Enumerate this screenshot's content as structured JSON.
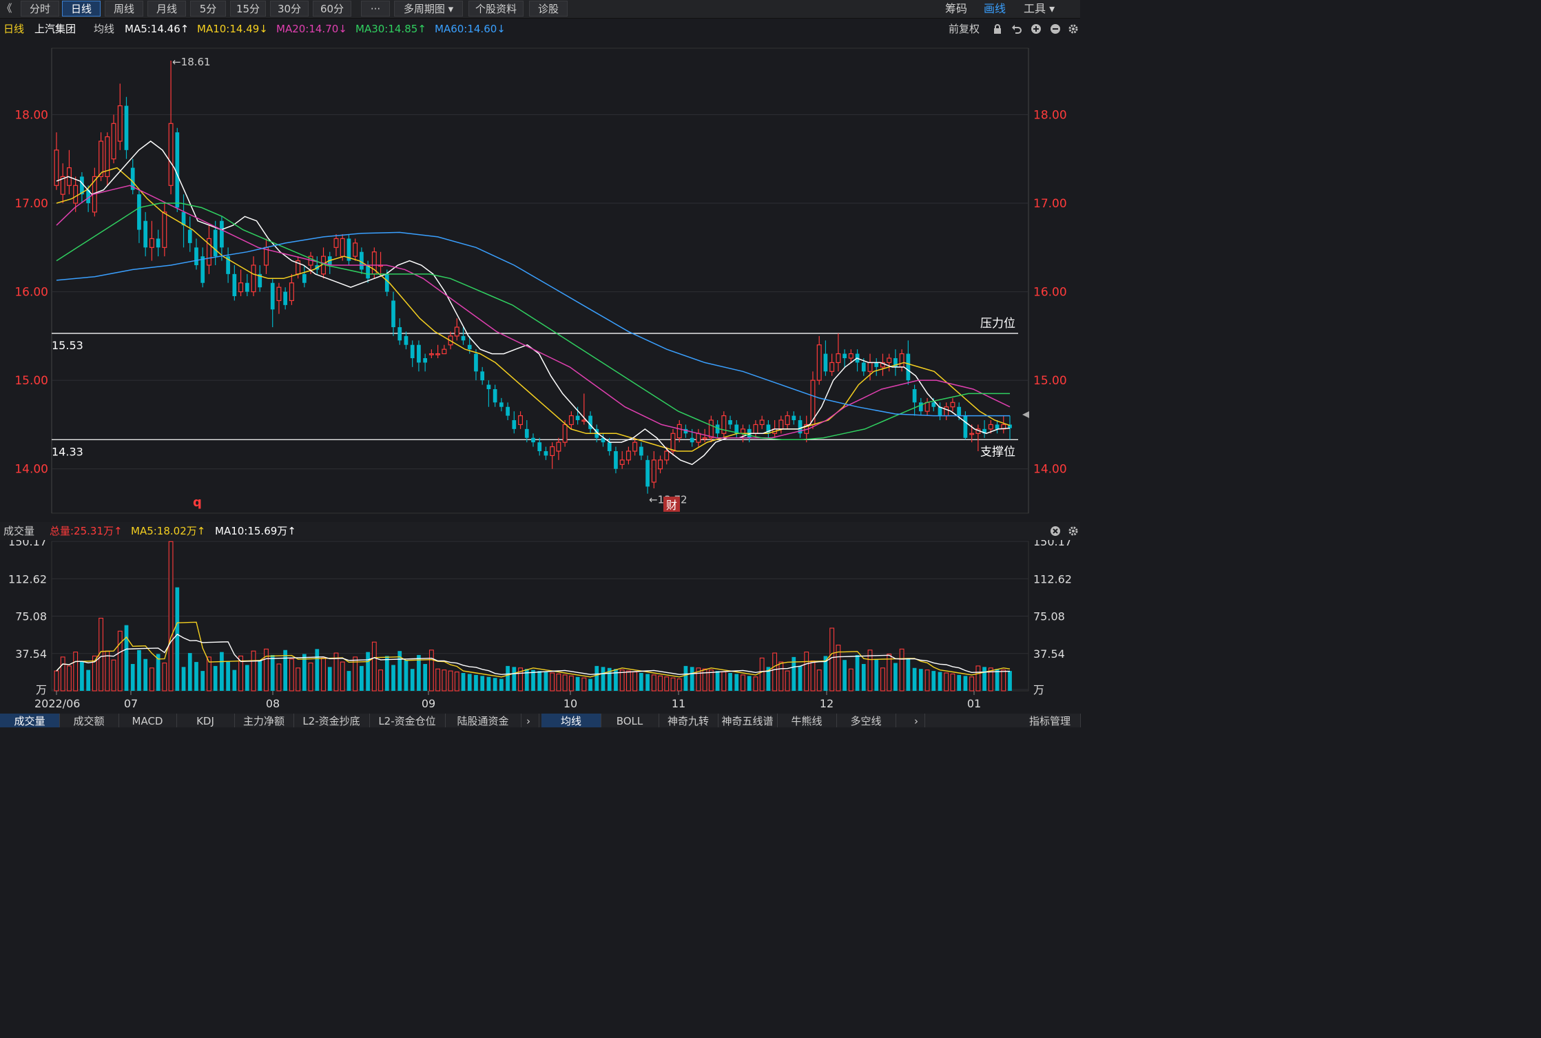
{
  "toolbar": {
    "back_glyph": "《",
    "period_tabs": [
      "分时",
      "日线",
      "周线",
      "月线",
      "5分",
      "15分",
      "30分",
      "60分",
      "···",
      "多周期图 ▾",
      "个股资料",
      "诊股"
    ],
    "active_tab": "日线",
    "right_items": [
      "筹码",
      "画线",
      "工具 ▾"
    ]
  },
  "info": {
    "period": "日线",
    "stock_name": "上汽集团",
    "indicator_name": "均线",
    "ma5": "MA5:14.46↑",
    "ma10": "MA10:14.49↓",
    "ma20": "MA20:14.70↓",
    "ma30": "MA30:14.85↑",
    "ma60": "MA60:14.60↓",
    "adjust": "前复权"
  },
  "colors": {
    "up": "#ff3b3b",
    "down": "#00b5c8",
    "ma5": "#ffffff",
    "ma10": "#f5d020",
    "ma20": "#e040b0",
    "ma30": "#30d060",
    "ma60": "#3aa0ff",
    "axis_label": "#ff3b3b"
  },
  "price_axis": {
    "ticks": [
      "18.00",
      "17.00",
      "16.00",
      "15.00",
      "14.00"
    ]
  },
  "annotations": {
    "high_label": "←18.61",
    "low_label": "←13.72",
    "resistance_value": "15.53",
    "support_value": "14.33",
    "resistance_label": "压力位",
    "support_label": "支撑位",
    "q_marker": "q",
    "cai_marker": "财"
  },
  "volume": {
    "title": "成交量",
    "total": "总量:25.31万↑",
    "ma5": "MA5:18.02万↑",
    "ma10": "MA10:15.69万↑",
    "ticks": [
      "150.17",
      "112.62",
      "75.08",
      "37.54",
      "万"
    ]
  },
  "dates": [
    "2022/06",
    "07",
    "08",
    "09",
    "10",
    "11",
    "12",
    "01"
  ],
  "bottom_tabs_left": [
    "成交量",
    "成交额",
    "MACD",
    "KDJ",
    "主力净额",
    "L2-资金抄底",
    "L2-资金仓位",
    "陆股通资金"
  ],
  "bottom_tabs_right": [
    "均线",
    "BOLL",
    "神奇九转",
    "神奇五线谱",
    "牛熊线",
    "多空线"
  ],
  "bottom_right_label": "指标管理",
  "chart_data": {
    "type": "candlestick",
    "ylim": [
      13.5,
      18.75
    ],
    "resistance": 15.53,
    "support": 14.33,
    "candles": [
      [
        17.2,
        17.6,
        17.8,
        17.15
      ],
      [
        17.1,
        17.3,
        17.45,
        17.0
      ],
      [
        17.2,
        17.4,
        17.6,
        17.1
      ],
      [
        17.0,
        17.2,
        17.3,
        16.9
      ],
      [
        17.3,
        17.1,
        17.35,
        17.0
      ],
      [
        17.15,
        17.0,
        17.2,
        16.9
      ],
      [
        16.9,
        17.3,
        17.4,
        16.85
      ],
      [
        17.3,
        17.7,
        17.8,
        17.25
      ],
      [
        17.3,
        17.75,
        17.8,
        17.2
      ],
      [
        17.5,
        17.9,
        18.0,
        17.45
      ],
      [
        17.7,
        18.1,
        18.35,
        17.6
      ],
      [
        18.1,
        17.6,
        18.2,
        17.5
      ],
      [
        17.4,
        17.15,
        17.5,
        17.1
      ],
      [
        17.1,
        16.7,
        17.15,
        16.55
      ],
      [
        16.8,
        16.5,
        16.9,
        16.4
      ],
      [
        16.5,
        16.6,
        16.8,
        16.35
      ],
      [
        16.6,
        16.5,
        16.7,
        16.4
      ],
      [
        16.5,
        16.9,
        17.0,
        16.4
      ],
      [
        17.2,
        17.9,
        18.61,
        17.1
      ],
      [
        17.8,
        16.95,
        17.85,
        16.9
      ],
      [
        16.9,
        16.75,
        17.1,
        16.5
      ],
      [
        16.7,
        16.55,
        16.85,
        16.45
      ],
      [
        16.5,
        16.3,
        16.6,
        16.25
      ],
      [
        16.4,
        16.1,
        16.5,
        16.05
      ],
      [
        16.3,
        16.6,
        16.75,
        16.2
      ],
      [
        16.7,
        16.4,
        16.8,
        16.3
      ],
      [
        16.8,
        16.5,
        16.85,
        16.35
      ],
      [
        16.4,
        16.2,
        16.5,
        16.1
      ],
      [
        16.2,
        15.95,
        16.3,
        15.9
      ],
      [
        16.0,
        16.1,
        16.25,
        15.95
      ],
      [
        16.1,
        16.0,
        16.2,
        15.95
      ],
      [
        16.0,
        16.3,
        16.4,
        15.95
      ],
      [
        16.2,
        16.05,
        16.3,
        16.0
      ],
      [
        16.3,
        16.5,
        16.6,
        16.2
      ],
      [
        16.1,
        15.8,
        16.15,
        15.6
      ],
      [
        15.9,
        16.05,
        16.1,
        15.75
      ],
      [
        16.0,
        15.85,
        16.05,
        15.8
      ],
      [
        15.9,
        16.1,
        16.2,
        15.85
      ],
      [
        16.2,
        16.35,
        16.4,
        16.15
      ],
      [
        16.2,
        16.1,
        16.3,
        16.05
      ],
      [
        16.3,
        16.4,
        16.45,
        16.2
      ],
      [
        16.3,
        16.25,
        16.4,
        16.2
      ],
      [
        16.2,
        16.4,
        16.5,
        16.15
      ],
      [
        16.4,
        16.3,
        16.45,
        16.2
      ],
      [
        16.5,
        16.6,
        16.65,
        16.4
      ],
      [
        16.4,
        16.6,
        16.65,
        16.35
      ],
      [
        16.6,
        16.35,
        16.65,
        16.3
      ],
      [
        16.4,
        16.55,
        16.6,
        16.35
      ],
      [
        16.45,
        16.25,
        16.5,
        16.2
      ],
      [
        16.3,
        16.15,
        16.35,
        16.1
      ],
      [
        16.2,
        16.45,
        16.5,
        16.15
      ],
      [
        16.3,
        16.3,
        16.45,
        16.2
      ],
      [
        16.2,
        16.0,
        16.25,
        15.95
      ],
      [
        15.9,
        15.6,
        16.0,
        15.5
      ],
      [
        15.6,
        15.45,
        15.7,
        15.4
      ],
      [
        15.5,
        15.4,
        15.55,
        15.35
      ],
      [
        15.4,
        15.25,
        15.45,
        15.15
      ],
      [
        15.4,
        15.2,
        15.45,
        15.1
      ],
      [
        15.25,
        15.2,
        15.3,
        15.1
      ],
      [
        15.3,
        15.3,
        15.35,
        15.25
      ],
      [
        15.3,
        15.3,
        15.4,
        15.25
      ],
      [
        15.3,
        15.35,
        15.4,
        15.3
      ],
      [
        15.4,
        15.5,
        15.55,
        15.35
      ],
      [
        15.5,
        15.6,
        15.7,
        15.45
      ],
      [
        15.5,
        15.45,
        15.6,
        15.4
      ],
      [
        15.4,
        15.35,
        15.5,
        15.3
      ],
      [
        15.3,
        15.1,
        15.35,
        15.0
      ],
      [
        15.1,
        15.0,
        15.15,
        14.95
      ],
      [
        14.95,
        14.9,
        15.0,
        14.7
      ],
      [
        14.9,
        14.75,
        14.95,
        14.7
      ],
      [
        14.75,
        14.7,
        14.8,
        14.65
      ],
      [
        14.7,
        14.6,
        14.75,
        14.55
      ],
      [
        14.55,
        14.45,
        14.65,
        14.4
      ],
      [
        14.5,
        14.6,
        14.65,
        14.45
      ],
      [
        14.45,
        14.35,
        14.55,
        14.3
      ],
      [
        14.35,
        14.3,
        14.4,
        14.25
      ],
      [
        14.3,
        14.2,
        14.35,
        14.15
      ],
      [
        14.2,
        14.15,
        14.25,
        14.1
      ],
      [
        14.15,
        14.25,
        14.3,
        14.0
      ],
      [
        14.2,
        14.3,
        14.35,
        14.1
      ],
      [
        14.3,
        14.5,
        14.55,
        14.25
      ],
      [
        14.5,
        14.6,
        14.65,
        14.45
      ],
      [
        14.6,
        14.55,
        14.7,
        14.5
      ],
      [
        14.55,
        14.55,
        14.85,
        14.5
      ],
      [
        14.6,
        14.45,
        14.65,
        14.4
      ],
      [
        14.45,
        14.35,
        14.5,
        14.3
      ],
      [
        14.35,
        14.3,
        14.4,
        14.25
      ],
      [
        14.3,
        14.2,
        14.35,
        14.15
      ],
      [
        14.2,
        14.0,
        14.25,
        13.95
      ],
      [
        14.05,
        14.1,
        14.2,
        14.0
      ],
      [
        14.1,
        14.2,
        14.25,
        14.05
      ],
      [
        14.2,
        14.3,
        14.35,
        14.15
      ],
      [
        14.25,
        14.15,
        14.3,
        14.1
      ],
      [
        14.1,
        13.8,
        14.15,
        13.72
      ],
      [
        13.85,
        14.1,
        14.2,
        13.78
      ],
      [
        14.0,
        14.1,
        14.15,
        13.95
      ],
      [
        14.1,
        14.2,
        14.25,
        14.05
      ],
      [
        14.2,
        14.4,
        14.45,
        14.15
      ],
      [
        14.35,
        14.5,
        14.55,
        14.3
      ],
      [
        14.45,
        14.4,
        14.5,
        14.35
      ],
      [
        14.35,
        14.3,
        14.45,
        14.25
      ],
      [
        14.3,
        14.4,
        14.45,
        14.25
      ],
      [
        14.35,
        14.35,
        14.45,
        14.3
      ],
      [
        14.35,
        14.55,
        14.6,
        14.3
      ],
      [
        14.5,
        14.4,
        14.55,
        14.35
      ],
      [
        14.4,
        14.6,
        14.65,
        14.35
      ],
      [
        14.55,
        14.5,
        14.6,
        14.45
      ],
      [
        14.5,
        14.4,
        14.55,
        14.35
      ],
      [
        14.4,
        14.45,
        14.5,
        14.3
      ],
      [
        14.45,
        14.35,
        14.5,
        14.3
      ],
      [
        14.4,
        14.5,
        14.55,
        14.35
      ],
      [
        14.5,
        14.55,
        14.6,
        14.45
      ],
      [
        14.5,
        14.4,
        14.55,
        14.35
      ],
      [
        14.4,
        14.45,
        14.55,
        14.35
      ],
      [
        14.45,
        14.55,
        14.6,
        14.4
      ],
      [
        14.5,
        14.6,
        14.65,
        14.45
      ],
      [
        14.6,
        14.55,
        14.65,
        14.5
      ],
      [
        14.55,
        14.4,
        14.6,
        14.35
      ],
      [
        14.4,
        14.5,
        14.6,
        14.3
      ],
      [
        14.5,
        15.0,
        15.1,
        14.45
      ],
      [
        15.0,
        15.4,
        15.5,
        14.95
      ],
      [
        15.3,
        15.1,
        15.45,
        15.05
      ],
      [
        15.1,
        15.2,
        15.3,
        15.05
      ],
      [
        15.2,
        15.3,
        15.53,
        15.1
      ],
      [
        15.3,
        15.25,
        15.35,
        15.15
      ],
      [
        15.25,
        15.3,
        15.35,
        15.2
      ],
      [
        15.3,
        15.2,
        15.35,
        15.1
      ],
      [
        15.2,
        15.1,
        15.25,
        15.05
      ],
      [
        15.1,
        15.2,
        15.3,
        15.0
      ],
      [
        15.2,
        15.15,
        15.25,
        15.05
      ],
      [
        15.15,
        15.2,
        15.3,
        15.05
      ],
      [
        15.2,
        15.25,
        15.3,
        15.1
      ],
      [
        15.25,
        15.15,
        15.35,
        15.05
      ],
      [
        15.15,
        15.3,
        15.35,
        15.1
      ],
      [
        15.3,
        15.0,
        15.45,
        14.95
      ],
      [
        14.9,
        14.75,
        14.95,
        14.6
      ],
      [
        14.75,
        14.65,
        14.8,
        14.6
      ],
      [
        14.65,
        14.75,
        14.8,
        14.6
      ],
      [
        14.75,
        14.7,
        14.8,
        14.65
      ],
      [
        14.7,
        14.6,
        14.75,
        14.55
      ],
      [
        14.6,
        14.7,
        14.75,
        14.55
      ],
      [
        14.7,
        14.75,
        14.8,
        14.65
      ],
      [
        14.7,
        14.6,
        14.75,
        14.55
      ],
      [
        14.6,
        14.35,
        14.65,
        14.33
      ],
      [
        14.4,
        14.4,
        14.5,
        14.3
      ],
      [
        14.4,
        14.45,
        14.5,
        14.2
      ],
      [
        14.45,
        14.4,
        14.55,
        14.35
      ],
      [
        14.45,
        14.5,
        14.55,
        14.4
      ],
      [
        14.5,
        14.45,
        14.55,
        14.4
      ],
      [
        14.45,
        14.5,
        14.6,
        14.4
      ],
      [
        14.5,
        14.46,
        14.6,
        14.33
      ]
    ],
    "ma5": [
      17.25,
      17.3,
      17.25,
      17.1,
      17.15,
      17.3,
      17.45,
      17.6,
      17.7,
      17.6,
      17.4,
      17.1,
      16.8,
      16.75,
      16.7,
      16.75,
      16.85,
      16.8,
      16.6,
      16.45,
      16.35,
      16.3,
      16.2,
      16.15,
      16.1,
      16.05,
      16.1,
      16.15,
      16.2,
      16.3,
      16.35,
      16.3,
      16.2,
      16.0,
      15.75,
      15.5,
      15.35,
      15.3,
      15.3,
      15.35,
      15.4,
      15.3,
      15.05,
      14.85,
      14.7,
      14.55,
      14.4,
      14.3,
      14.3,
      14.35,
      14.45,
      14.35,
      14.2,
      14.1,
      14.05,
      14.15,
      14.3,
      14.35,
      14.35,
      14.4,
      14.4,
      14.45,
      14.45,
      14.45,
      14.5,
      14.7,
      15.0,
      15.15,
      15.25,
      15.2,
      15.2,
      15.15,
      15.15,
      15.05,
      14.85,
      14.7,
      14.65,
      14.55,
      14.45,
      14.4,
      14.45,
      14.46
    ],
    "ma10": [
      17.0,
      17.05,
      17.15,
      17.35,
      17.4,
      17.25,
      17.05,
      16.9,
      16.8,
      16.7,
      16.55,
      16.4,
      16.3,
      16.2,
      16.15,
      16.15,
      16.2,
      16.25,
      16.35,
      16.4,
      16.35,
      16.25,
      16.1,
      15.9,
      15.7,
      15.55,
      15.45,
      15.35,
      15.3,
      15.2,
      15.05,
      14.9,
      14.75,
      14.6,
      14.45,
      14.4,
      14.4,
      14.4,
      14.35,
      14.3,
      14.25,
      14.2,
      14.2,
      14.3,
      14.35,
      14.4,
      14.4,
      14.4,
      14.45,
      14.45,
      14.5,
      14.55,
      14.7,
      14.95,
      15.1,
      15.15,
      15.2,
      15.15,
      15.1,
      14.95,
      14.8,
      14.65,
      14.55,
      14.49
    ]
  }
}
